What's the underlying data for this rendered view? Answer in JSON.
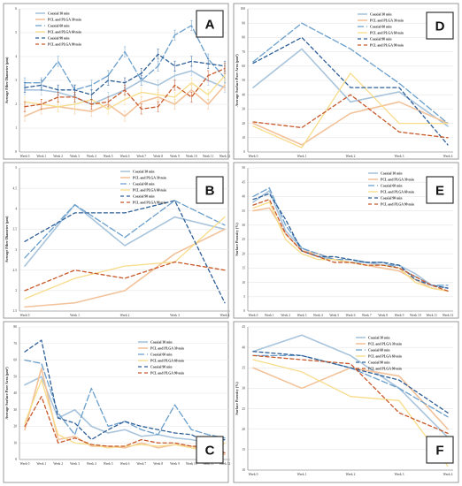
{
  "series_styles": [
    {
      "name": "Coaxial 30 min",
      "color": "#a8c4dc",
      "dash": "solid",
      "width": 1.6
    },
    {
      "name": "PCL and PLGA 30 min",
      "color": "#f2c29a",
      "dash": "solid",
      "width": 1.6
    },
    {
      "name": "Coaxial 60 min",
      "color": "#6a9fcc",
      "dash": "long-dash",
      "width": 1.3
    },
    {
      "name": "PCL and PLGA 60 min",
      "color": "#f7dc8a",
      "dash": "solid",
      "width": 1.3
    },
    {
      "name": "Coaxial 90 min",
      "color": "#2e5f97",
      "dash": "dash",
      "width": 1.3
    },
    {
      "name": "PCL and PLGA 90 min",
      "color": "#c8582a",
      "dash": "dash",
      "width": 1.3
    }
  ],
  "chart_data": [
    {
      "letter": "A",
      "type": "line",
      "ylabel": "Average Fiber Diameter (μm)",
      "xlabel": "",
      "categories": [
        "Week 0",
        "Week 1",
        "Week 2",
        "Week 3",
        "Week 4",
        "Week 5",
        "Week 6",
        "Week 7",
        "Week 8",
        "Week 9",
        "Week 10",
        "Week 11",
        "Week 12"
      ],
      "ylim": [
        0,
        6
      ],
      "yticks": [
        0,
        1,
        2,
        3,
        4,
        5,
        6
      ],
      "legend_position": "top-left",
      "error_bars": true,
      "series": [
        {
          "name": "Coaxial 30 min",
          "values": [
            2.6,
            2.6,
            2.5,
            2.3,
            2.0,
            2.3,
            2.6,
            3.0,
            2.8,
            3.2,
            3.4,
            3.0,
            2.7
          ]
        },
        {
          "name": "PCL and PLGA 30 min",
          "values": [
            1.5,
            1.8,
            1.9,
            1.8,
            1.7,
            2.0,
            1.5,
            2.1,
            2.3,
            2.0,
            2.6,
            2.0,
            2.8
          ]
        },
        {
          "name": "Coaxial 60 min",
          "values": [
            2.9,
            2.9,
            3.8,
            2.6,
            2.8,
            3.2,
            4.2,
            3.0,
            3.6,
            4.9,
            5.3,
            3.9,
            3.1
          ]
        },
        {
          "name": "PCL and PLGA 60 min",
          "values": [
            2.1,
            2.0,
            1.9,
            2.0,
            2.2,
            1.8,
            2.2,
            2.5,
            2.4,
            2.3,
            2.9,
            2.4,
            3.2
          ]
        },
        {
          "name": "Coaxial 90 min",
          "values": [
            2.7,
            2.8,
            2.6,
            2.6,
            2.4,
            3.0,
            2.9,
            3.3,
            4.1,
            3.6,
            3.8,
            3.7,
            3.6
          ]
        },
        {
          "name": "PCL and PLGA 90 min",
          "values": [
            1.9,
            2.0,
            2.3,
            2.3,
            2.0,
            2.1,
            2.6,
            1.8,
            1.9,
            2.8,
            2.3,
            3.2,
            3.5
          ]
        }
      ]
    },
    {
      "letter": "B",
      "type": "line",
      "ylabel": "Average Fiber Diameter (μm)",
      "xlabel": "",
      "categories": [
        "Week 0",
        "Week 1",
        "Week 2",
        "Week 3",
        "Week 4"
      ],
      "ylim": [
        1.5,
        5
      ],
      "yticks": [
        1.5,
        2,
        2.5,
        3,
        3.5,
        4,
        4.5,
        5
      ],
      "legend_position": "top-right",
      "error_bars": false,
      "series": [
        {
          "name": "Coaxial 30 min",
          "values": [
            2.6,
            4.1,
            3.1,
            3.8,
            3.5
          ]
        },
        {
          "name": "PCL and PLGA 30 min",
          "values": [
            1.6,
            1.7,
            2.0,
            2.9,
            3.5
          ]
        },
        {
          "name": "Coaxial 60 min",
          "values": [
            2.8,
            4.1,
            3.3,
            4.2,
            3.6
          ]
        },
        {
          "name": "PCL and PLGA 60 min",
          "values": [
            1.8,
            2.3,
            2.6,
            2.7,
            3.8
          ]
        },
        {
          "name": "Coaxial 90 min",
          "values": [
            3.2,
            3.9,
            3.9,
            4.2,
            1.7
          ]
        },
        {
          "name": "PCL and PLGA 90 min",
          "values": [
            2.0,
            2.5,
            2.3,
            2.7,
            2.5
          ]
        }
      ]
    },
    {
      "letter": "C",
      "type": "line",
      "ylabel": "Average Surface Pore Area (μm²)",
      "xlabel": "",
      "categories": [
        "Week 0",
        "Week 1",
        "Week 2",
        "Week 3",
        "Week 4",
        "Week 5",
        "Week 6",
        "Week 7",
        "Week 8",
        "Week 9",
        "Week 10",
        "Week 11",
        "Week 12"
      ],
      "ylim": [
        0,
        80
      ],
      "yticks": [
        0,
        10,
        20,
        30,
        40,
        50,
        60,
        70,
        80
      ],
      "legend_position": "right",
      "error_bars": false,
      "series": [
        {
          "name": "Coaxial 30 min",
          "values": [
            45,
            50,
            25,
            30,
            20,
            16,
            18,
            14,
            15,
            13,
            12,
            10,
            12
          ]
        },
        {
          "name": "PCL and PLGA 30 min",
          "values": [
            18,
            55,
            12,
            14,
            8,
            8,
            7,
            10,
            7,
            9,
            8,
            5,
            3
          ]
        },
        {
          "name": "Coaxial 60 min",
          "values": [
            60,
            58,
            28,
            15,
            43,
            20,
            23,
            18,
            15,
            33,
            18,
            15,
            13
          ]
        },
        {
          "name": "PCL and PLGA 60 min",
          "values": [
            22,
            48,
            15,
            10,
            9,
            7,
            8,
            9,
            8,
            9,
            7,
            5,
            10
          ]
        },
        {
          "name": "Coaxial 90 min",
          "values": [
            65,
            72,
            25,
            22,
            12,
            18,
            23,
            20,
            18,
            16,
            15,
            10,
            12
          ]
        },
        {
          "name": "PCL and PLGA 90 min",
          "values": [
            20,
            38,
            10,
            13,
            9,
            8,
            8,
            12,
            10,
            10,
            8,
            8,
            4
          ]
        }
      ]
    },
    {
      "letter": "D",
      "type": "line",
      "ylabel": "Average Surface Pore Area (μm²)",
      "xlabel": "",
      "categories": [
        "Week 0",
        "Week 1",
        "Week 2",
        "Week 3",
        "Week 4"
      ],
      "ylim": [
        0,
        100
      ],
      "yticks": [
        0,
        10,
        20,
        30,
        40,
        50,
        60,
        70,
        80,
        90,
        100
      ],
      "legend_position": "top-right",
      "error_bars": false,
      "series": [
        {
          "name": "Coaxial 30 min",
          "values": [
            45,
            72,
            35,
            42,
            18
          ]
        },
        {
          "name": "PCL and PLGA 30 min",
          "values": [
            20,
            5,
            27,
            35,
            20
          ]
        },
        {
          "name": "Coaxial 60 min",
          "values": [
            63,
            90,
            72,
            48,
            20
          ]
        },
        {
          "name": "PCL and PLGA 60 min",
          "values": [
            18,
            3,
            55,
            20,
            20
          ]
        },
        {
          "name": "Coaxial 90 min",
          "values": [
            62,
            80,
            45,
            45,
            5
          ]
        },
        {
          "name": "PCL and PLGA 90 min",
          "values": [
            21,
            17,
            40,
            14,
            10
          ]
        }
      ]
    },
    {
      "letter": "E",
      "type": "line",
      "ylabel": "Surface Porosity (%)",
      "xlabel": "",
      "categories": [
        "Week 0",
        "Week 1",
        "Week 2",
        "Week 3",
        "Week 4",
        "Week 5",
        "Week 6",
        "Week 7",
        "Week 8",
        "Week 9",
        "Week 10",
        "Week 11",
        "Week 12"
      ],
      "ylim": [
        0,
        50
      ],
      "yticks": [
        0,
        5,
        10,
        15,
        20,
        25,
        30,
        35,
        40,
        45,
        50
      ],
      "legend_position": "top-right",
      "error_bars": false,
      "series": [
        {
          "name": "Coaxial 30 min",
          "values": [
            38,
            42,
            28,
            22,
            19,
            18,
            17,
            17,
            16,
            16,
            13,
            9,
            8
          ]
        },
        {
          "name": "PCL and PLGA 30 min",
          "values": [
            35,
            36,
            27,
            21,
            20,
            18,
            17,
            16,
            15,
            14,
            11,
            8,
            7
          ]
        },
        {
          "name": "Coaxial 60 min",
          "values": [
            40,
            43,
            30,
            22,
            20,
            18,
            18,
            17,
            17,
            15,
            12,
            9,
            9
          ]
        },
        {
          "name": "PCL and PLGA 60 min",
          "values": [
            36,
            38,
            25,
            20,
            18,
            18,
            17,
            16,
            16,
            15,
            10,
            8,
            7
          ]
        },
        {
          "name": "Coaxial 90 min",
          "values": [
            39,
            41,
            32,
            21,
            19,
            19,
            18,
            17,
            17,
            16,
            11,
            9,
            8
          ]
        },
        {
          "name": "PCL and PLGA 90 min",
          "values": [
            37,
            39,
            27,
            21,
            19,
            17,
            17,
            16,
            16,
            15,
            12,
            9,
            7
          ]
        }
      ]
    },
    {
      "letter": "F",
      "type": "line",
      "ylabel": "Surface Porosity (%)",
      "xlabel": "",
      "categories": [
        "Week 0",
        "Week 1",
        "Week 2",
        "Week 3",
        "Week 4"
      ],
      "ylim": [
        10,
        45
      ],
      "yticks": [
        10,
        15,
        20,
        25,
        30,
        35,
        40,
        45
      ],
      "legend_position": "top-right",
      "error_bars": false,
      "series": [
        {
          "name": "Coaxial 30 min",
          "values": [
            39,
            43,
            38,
            30,
            18
          ]
        },
        {
          "name": "PCL and PLGA 30 min",
          "values": [
            35,
            30,
            35,
            33,
            20
          ]
        },
        {
          "name": "Coaxial 60 min",
          "values": [
            38,
            38,
            35,
            30,
            23
          ]
        },
        {
          "name": "PCL and PLGA 60 min",
          "values": [
            37,
            34,
            28,
            27,
            11
          ]
        },
        {
          "name": "Coaxial 90 min",
          "values": [
            39,
            38,
            35,
            32,
            24
          ]
        },
        {
          "name": "PCL and PLGA 90 min",
          "values": [
            38,
            37,
            36,
            24,
            19
          ]
        }
      ]
    }
  ]
}
